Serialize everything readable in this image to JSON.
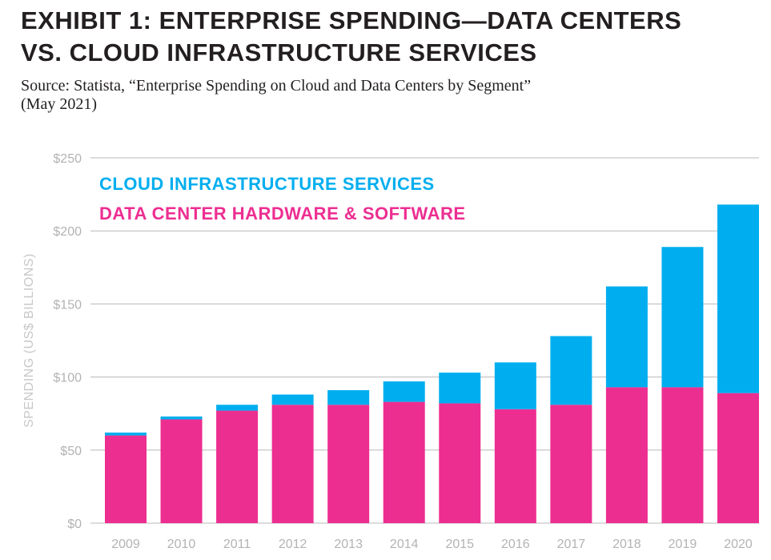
{
  "header": {
    "title_line1": "EXHIBIT 1: ENTERPRISE SPENDING—DATA CENTERS",
    "title_line2": "VS. CLOUD INFRASTRUCTURE SERVICES",
    "source_line1": "Source: Statista, “Enterprise Spending on Cloud and Data Centers by Segment”",
    "source_line2": "(May 2021)"
  },
  "chart_data": {
    "type": "bar",
    "stacked": true,
    "categories": [
      "2009",
      "2010",
      "2011",
      "2012",
      "2013",
      "2014",
      "2015",
      "2016",
      "2017",
      "2018",
      "2019",
      "2020"
    ],
    "series": [
      {
        "name": "DATA CENTER HARDWARE & SOFTWARE",
        "color": "#ed2e91",
        "values": [
          60,
          71,
          77,
          81,
          81,
          83,
          82,
          78,
          81,
          93,
          93,
          89
        ]
      },
      {
        "name": "CLOUD INFRASTRUCTURE SERVICES",
        "color": "#00aeef",
        "values": [
          2,
          2,
          4,
          7,
          10,
          14,
          21,
          32,
          47,
          69,
          96,
          129
        ]
      }
    ],
    "ylabel": "SPENDING (US$ BILLIONS)",
    "ylim": [
      0,
      250
    ],
    "yticks": [
      0,
      50,
      100,
      150,
      200,
      250
    ],
    "ytick_labels": [
      "$0",
      "$50",
      "$100",
      "$150",
      "$200",
      "$250"
    ],
    "grid": true,
    "legend_position": "top-left"
  }
}
